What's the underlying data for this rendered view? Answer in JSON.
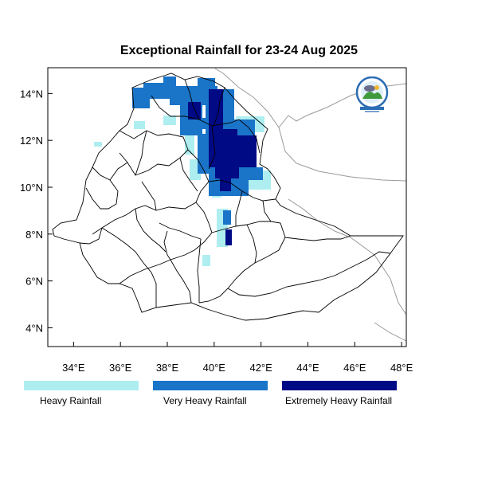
{
  "title": "Exceptional Rainfall for 23-24 Aug 2025",
  "axes": {
    "x_ticks": [
      {
        "value": 34,
        "label": "34°E"
      },
      {
        "value": 36,
        "label": "36°E"
      },
      {
        "value": 38,
        "label": "38°E"
      },
      {
        "value": 40,
        "label": "40°E"
      },
      {
        "value": 42,
        "label": "42°E"
      },
      {
        "value": 44,
        "label": "44°E"
      },
      {
        "value": 46,
        "label": "46°E"
      },
      {
        "value": 48,
        "label": "48°E"
      }
    ],
    "y_ticks": [
      {
        "value": 4,
        "label": "4°N"
      },
      {
        "value": 6,
        "label": "6°N"
      },
      {
        "value": 8,
        "label": "8°N"
      },
      {
        "value": 10,
        "label": "10°N"
      },
      {
        "value": 12,
        "label": "12°N"
      },
      {
        "value": 14,
        "label": "14°N"
      }
    ],
    "lon_range": [
      32.9,
      48.2
    ],
    "lat_range": [
      3.2,
      15.1
    ]
  },
  "legend": [
    {
      "label": "Heavy Rainfall",
      "color": "#aeeef0"
    },
    {
      "label": "Very Heavy Rainfall",
      "color": "#1a74c8"
    },
    {
      "label": "Extremely Heavy Rainfall",
      "color": "#000a85"
    }
  ],
  "logo": {
    "icon": "meteorology-institute-logo-icon"
  }
}
